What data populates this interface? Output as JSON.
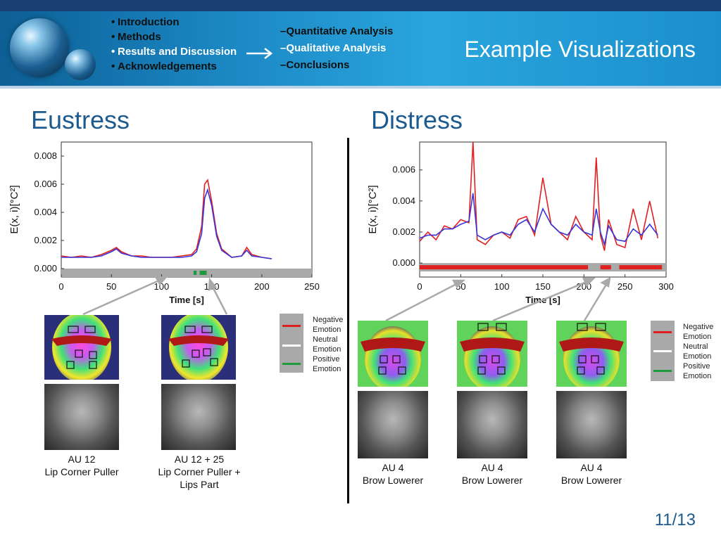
{
  "nav": {
    "left_items": [
      "Introduction",
      "Methods",
      "Results and Discussion",
      "Acknowledgements"
    ],
    "active_index": 2,
    "sub_items": [
      "Quantitative Analysis",
      "Qualitative Analysis",
      "Conclusions"
    ]
  },
  "title": "Example Visualizations",
  "eustress": {
    "heading": "Eustress",
    "captions": [
      {
        "line1": "AU 12",
        "line2": "Lip Corner Puller",
        "line3": ""
      },
      {
        "line1": "AU 12 + 25",
        "line2": "Lip Corner Puller +",
        "line3": "Lips Part"
      }
    ]
  },
  "distress": {
    "heading": "Distress",
    "captions": [
      {
        "line1": "AU 4",
        "line2": "Brow Lowerer"
      },
      {
        "line1": "AU 4",
        "line2": "Brow Lowerer"
      },
      {
        "line1": "AU 4",
        "line2": "Brow Lowerer"
      }
    ]
  },
  "legend": {
    "items": [
      {
        "label1": "Negative",
        "label2": "Emotion",
        "color": "#e02020"
      },
      {
        "label1": "Neutral",
        "label2": "Emotion",
        "color": "#ffffff"
      },
      {
        "label1": "Positive",
        "label2": "Emotion",
        "color": "#1e9a3c"
      }
    ]
  },
  "page": "11/13",
  "chart_data": [
    {
      "type": "line",
      "ylabel": "E(x, i)[°C²]",
      "xlabel": "Time [s]",
      "xlim": [
        0,
        250
      ],
      "ylim": [
        -0.0006,
        0.009
      ],
      "xticks": [
        "0",
        "50",
        "100",
        "150",
        "200",
        "250"
      ],
      "yticks": [
        "0.000",
        "0.002",
        "0.004",
        "0.006",
        "0.008"
      ],
      "x": [
        0,
        10,
        20,
        30,
        40,
        50,
        55,
        60,
        70,
        80,
        90,
        100,
        110,
        120,
        130,
        135,
        140,
        143,
        146,
        150,
        155,
        160,
        170,
        180,
        185,
        190,
        200,
        210
      ],
      "series": [
        {
          "color": "#e02020",
          "values": [
            0.0009,
            0.0008,
            0.0009,
            0.0008,
            0.001,
            0.0013,
            0.0015,
            0.0012,
            0.0009,
            0.0009,
            0.0008,
            0.0008,
            0.0008,
            0.0009,
            0.001,
            0.0014,
            0.003,
            0.006,
            0.0063,
            0.0048,
            0.0025,
            0.0014,
            0.0008,
            0.0009,
            0.0015,
            0.001,
            0.0008,
            0.0007
          ]
        },
        {
          "color": "#3a35d6",
          "values": [
            0.0008,
            0.0008,
            0.0008,
            0.0008,
            0.0009,
            0.0012,
            0.0014,
            0.0011,
            0.0009,
            0.0008,
            0.0008,
            0.0008,
            0.0008,
            0.0008,
            0.0009,
            0.0012,
            0.0025,
            0.005,
            0.0056,
            0.0045,
            0.0023,
            0.0013,
            0.0008,
            0.0009,
            0.0013,
            0.0009,
            0.0008,
            0.0007
          ]
        }
      ],
      "emotion_bar": {
        "neutral_color": "#a9a9a9",
        "segments": [
          {
            "start": 132,
            "end": 135,
            "color": "#1e9a3c"
          },
          {
            "start": 138,
            "end": 145,
            "color": "#1e9a3c"
          }
        ]
      }
    },
    {
      "type": "line",
      "ylabel": "E(x, i)[°C²]",
      "xlabel": "Time [s]",
      "xlim": [
        0,
        300
      ],
      "ylim": [
        -0.0009,
        0.0078
      ],
      "xticks": [
        "0",
        "50",
        "100",
        "150",
        "200",
        "250",
        "300"
      ],
      "yticks": [
        "0.000",
        "0.002",
        "0.004",
        "0.006"
      ],
      "x": [
        0,
        10,
        20,
        30,
        40,
        50,
        60,
        65,
        70,
        80,
        90,
        100,
        110,
        120,
        130,
        140,
        150,
        160,
        170,
        180,
        190,
        200,
        210,
        215,
        220,
        225,
        230,
        240,
        250,
        260,
        270,
        280,
        290
      ],
      "series": [
        {
          "color": "#e02020",
          "values": [
            0.0014,
            0.002,
            0.0015,
            0.0024,
            0.0022,
            0.0028,
            0.0026,
            0.0078,
            0.0015,
            0.0012,
            0.0018,
            0.002,
            0.0016,
            0.0028,
            0.003,
            0.0018,
            0.0055,
            0.0025,
            0.002,
            0.0015,
            0.003,
            0.002,
            0.0015,
            0.0068,
            0.0018,
            0.0008,
            0.0028,
            0.0012,
            0.001,
            0.0035,
            0.0015,
            0.004,
            0.0016
          ]
        },
        {
          "color": "#3a35d6",
          "values": [
            0.0016,
            0.0018,
            0.0018,
            0.0022,
            0.0022,
            0.0025,
            0.0027,
            0.0045,
            0.0018,
            0.0015,
            0.0018,
            0.002,
            0.0018,
            0.0025,
            0.0028,
            0.002,
            0.0035,
            0.0025,
            0.002,
            0.0018,
            0.0025,
            0.002,
            0.0018,
            0.0035,
            0.002,
            0.0012,
            0.0024,
            0.0015,
            0.0014,
            0.0022,
            0.0018,
            0.0025,
            0.0018
          ]
        }
      ],
      "emotion_bar": {
        "neutral_color": "#a9a9a9",
        "segments": [
          {
            "start": 0,
            "end": 205,
            "color": "#e02020"
          },
          {
            "start": 220,
            "end": 233,
            "color": "#e02020"
          },
          {
            "start": 243,
            "end": 295,
            "color": "#e02020"
          }
        ]
      }
    }
  ]
}
